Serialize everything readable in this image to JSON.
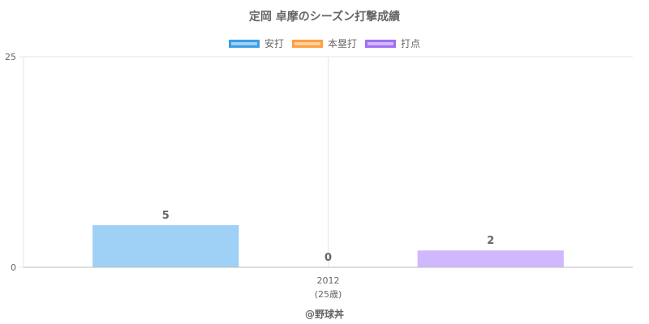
{
  "chart_data": {
    "type": "bar",
    "title": "定岡 卓摩のシーズン打撃成績",
    "categories": [
      "2012"
    ],
    "category_sublabels": [
      "(25歳)"
    ],
    "series": [
      {
        "name": "安打",
        "values": [
          5
        ],
        "color": "#9fd0f5",
        "border": "#3a9fe5"
      },
      {
        "name": "本塁打",
        "values": [
          0
        ],
        "color": "#ffcf9f",
        "border": "#ff9f40"
      },
      {
        "name": "打点",
        "values": [
          2
        ],
        "color": "#d0b8ff",
        "border": "#a070f0"
      }
    ],
    "ylim": [
      0,
      25
    ],
    "yticks": [
      "0",
      "25"
    ],
    "grid": true,
    "legend": "top-center",
    "footer": "@野球丼"
  }
}
